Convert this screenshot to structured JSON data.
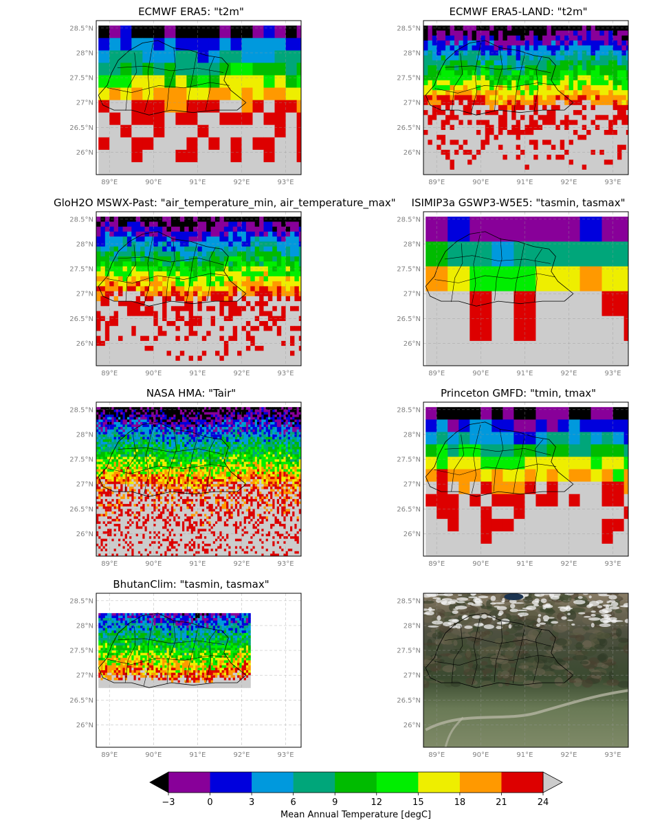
{
  "panels": [
    {
      "title": "ECMWF ERA5: \"t2m\"",
      "style": "coarse",
      "seed": 11
    },
    {
      "title": "ECMWF ERA5-LAND: \"t2m\"",
      "style": "medium",
      "seed": 23
    },
    {
      "title": "GloH2O MSWX-Past: \"air_temperature_min, air_temperature_max\"",
      "style": "medium",
      "seed": 37
    },
    {
      "title": "ISIMIP3a GSWP3-W5E5: \"tasmin, tasmax\"",
      "style": "verycoarse",
      "seed": 41
    },
    {
      "title": "NASA HMA: \"Tair\"",
      "style": "fine",
      "seed": 53
    },
    {
      "title": "Princeton GMFD: \"tmin, tmax\"",
      "style": "coarse",
      "seed": 67
    },
    {
      "title": "BhutanClim: \"tasmin, tasmax\"",
      "style": "bhutan",
      "seed": 79
    },
    {
      "title": "",
      "style": "satellite",
      "seed": 97
    }
  ],
  "x_ticks": [
    "89°E",
    "90°E",
    "91°E",
    "92°E",
    "93°E"
  ],
  "y_ticks": [
    "28.5°N",
    "28°N",
    "27.5°N",
    "27°N",
    "26.5°N",
    "26°N"
  ],
  "colorbar": {
    "ticks": [
      "−3",
      "0",
      "3",
      "6",
      "9",
      "12",
      "15",
      "18",
      "21",
      "24"
    ],
    "label": "Mean Annual Temperature [degC]",
    "colors": [
      "#880099",
      "#0000dd",
      "#0099dd",
      "#00a67a",
      "#00bb00",
      "#00ee00",
      "#eeee00",
      "#ff9900",
      "#dd0000"
    ],
    "under_color": "#000000",
    "over_color": "#cccccc"
  },
  "colors": {
    "below": "#000000",
    "above": "#cccccc"
  }
}
